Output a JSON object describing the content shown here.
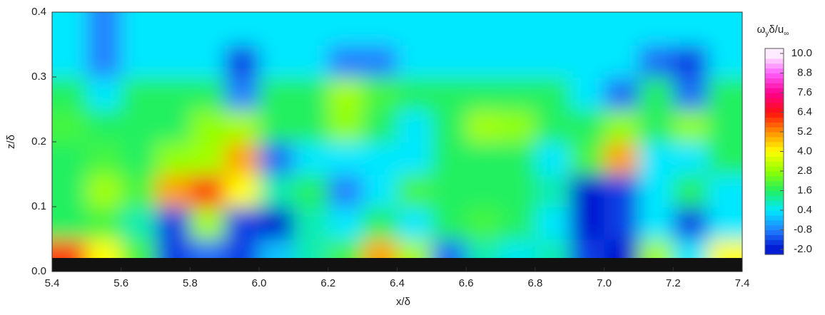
{
  "chart_data": {
    "type": "contour",
    "xlabel": "x/δ",
    "ylabel": "z/δ",
    "xlim": [
      5.4,
      7.4
    ],
    "ylim": [
      0,
      0.4
    ],
    "xticks": [
      5.4,
      5.6,
      5.8,
      {
        "value": 6,
        "label": "6.0"
      },
      6.2,
      6.4,
      6.6,
      6.8,
      {
        "value": 7,
        "label": "7.0"
      },
      7.2,
      7.4
    ],
    "yticks": [
      {
        "value": 0,
        "label": "0.0"
      },
      0.1,
      0.2,
      0.3,
      0.4
    ],
    "x": [
      5.45,
      5.55,
      5.65,
      5.75,
      5.85,
      5.95,
      6.05,
      6.15,
      6.25,
      6.35,
      6.45,
      6.55,
      6.65,
      6.75,
      6.85,
      6.95,
      7.05,
      7.15,
      7.25,
      7.35
    ],
    "z": [
      0.025,
      0.075,
      0.125,
      0.175,
      0.225,
      0.275,
      0.325,
      0.375
    ],
    "values": [
      [
        6,
        4,
        2,
        -1.5,
        -1,
        -1.5,
        0,
        1,
        2,
        5,
        3,
        -1,
        1,
        0.5,
        1,
        -1.5,
        -2,
        3,
        0.4,
        4
      ],
      [
        1.6,
        2,
        1,
        -1.5,
        3,
        -1.5,
        -2,
        1,
        0.4,
        1.6,
        0.4,
        1.6,
        2,
        1.6,
        0.4,
        -2,
        -1.5,
        0.4,
        -1.5,
        0.4
      ],
      [
        1.6,
        3,
        2,
        5,
        6,
        4,
        1,
        1.6,
        -0.8,
        0.4,
        2,
        1.6,
        1.6,
        1.6,
        1,
        -2,
        -1.5,
        0.4,
        1.6,
        0.4
      ],
      [
        1.6,
        2,
        1.6,
        2.8,
        3,
        5,
        -1,
        0.4,
        0.4,
        0.4,
        0.4,
        1.6,
        1.6,
        1.6,
        0.4,
        2,
        5,
        0.4,
        0.4,
        1.6
      ],
      [
        2,
        1.6,
        1.6,
        1.6,
        2.8,
        3,
        1.6,
        1.6,
        2.8,
        1.6,
        0.4,
        1.6,
        3,
        2.8,
        1.6,
        1.6,
        2.8,
        1.6,
        2.8,
        1.6
      ],
      [
        1.6,
        0.4,
        1.6,
        1.6,
        1.6,
        -0.8,
        1.6,
        1.6,
        3,
        2,
        1.6,
        1.6,
        1.6,
        1.6,
        1.6,
        0.4,
        -1,
        1.6,
        -1,
        1.6
      ],
      [
        0.4,
        -0.8,
        0.4,
        0.4,
        0.4,
        -1.5,
        0.4,
        0.4,
        -0.8,
        -0.8,
        0.4,
        0.4,
        0.4,
        0.4,
        0.4,
        0.4,
        0.4,
        -1,
        -1.5,
        0.4
      ],
      [
        0.4,
        -0.8,
        0.4,
        0.4,
        0.4,
        0.4,
        0.4,
        0.4,
        0.4,
        0.4,
        0.4,
        0.4,
        0.4,
        0.4,
        0.4,
        0.4,
        0.4,
        0.4,
        0.4,
        0.4
      ]
    ],
    "colorbar_title": [
      "ω",
      "y",
      "δ/u",
      "∞"
    ],
    "colorbar_ticks": [
      {
        "value": 10,
        "label": "10.0"
      },
      8.8,
      {
        "value": 7.6,
        "label": "7.6"
      },
      6.4,
      5.2,
      {
        "value": 4,
        "label": "4.0"
      },
      2.8,
      1.6,
      0.4,
      -0.8,
      {
        "value": -2,
        "label": "-2.0"
      }
    ],
    "colorbar_colors": [
      "#ffffff",
      "#ff60ff",
      "#ff0090",
      "#ff1010",
      "#ff9000",
      "#ffff00",
      "#90ff00",
      "#20f060",
      "#00e8ff",
      "#2080ff",
      "#0010d0"
    ]
  }
}
